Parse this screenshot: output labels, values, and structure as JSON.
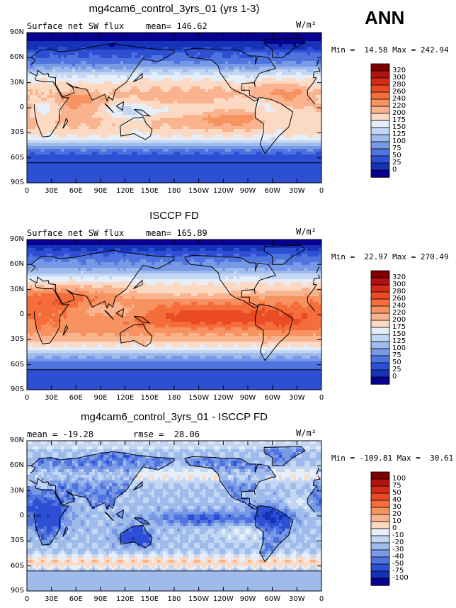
{
  "season": "ANN",
  "units_label": "W/m²",
  "lat_ticks": [
    "90N",
    "60N",
    "30N",
    "0",
    "30S",
    "60S",
    "90S"
  ],
  "lon_ticks": [
    "0",
    "30E",
    "60E",
    "90E",
    "120E",
    "150E",
    "180",
    "150W",
    "120W",
    "90W",
    "60W",
    "30W",
    "0"
  ],
  "panels": [
    {
      "title": "mg4cam6_control_3yrs_01 (yrs 1-3)",
      "left_label": "Surface net SW flux",
      "stat_label": "mean= 146.62",
      "minmax": "Min =  14.58 Max = 242.94",
      "colorbar": {
        "labels": [
          "320",
          "300",
          "280",
          "260",
          "240",
          "220",
          "200",
          "175",
          "150",
          "125",
          "100",
          "75",
          "50",
          "25",
          "0"
        ],
        "colors": [
          "#7f0000",
          "#b31212",
          "#d42c14",
          "#ea4b25",
          "#f46d3b",
          "#f79261",
          "#f9b48f",
          "#fcd9c2",
          "#e6eefa",
          "#c3d6f2",
          "#9ebbec",
          "#7799e6",
          "#4f74e0",
          "#2c4fd4",
          "#1633b8",
          "#08008f"
        ]
      }
    },
    {
      "title": "ISCCP FD",
      "left_label": "Surface net SW flux",
      "stat_label": "mean= 165.89",
      "minmax": "Min =  22.97 Max = 270.49",
      "colorbar": {
        "labels": [
          "320",
          "300",
          "280",
          "260",
          "240",
          "220",
          "200",
          "175",
          "150",
          "125",
          "100",
          "75",
          "50",
          "25",
          "0"
        ],
        "colors": [
          "#7f0000",
          "#b31212",
          "#d42c14",
          "#ea4b25",
          "#f46d3b",
          "#f79261",
          "#f9b48f",
          "#fcd9c2",
          "#e6eefa",
          "#c3d6f2",
          "#9ebbec",
          "#7799e6",
          "#4f74e0",
          "#2c4fd4",
          "#1633b8",
          "#08008f"
        ]
      }
    },
    {
      "title": "mg4cam6_control_3yrs_01 - ISCCP FD",
      "left_label": "mean = -19.28",
      "stat_label": "rmse =  28.06",
      "minmax": "Min = -109.81 Max =  30.61",
      "colorbar": {
        "labels": [
          "100",
          "75",
          "50",
          "40",
          "30",
          "20",
          "10",
          "0",
          "-10",
          "-20",
          "-30",
          "-40",
          "-50",
          "-75",
          "-100"
        ],
        "colors": [
          "#7f0000",
          "#b31212",
          "#d42c14",
          "#ea4b25",
          "#f46d3b",
          "#f79261",
          "#f9b48f",
          "#fcd9c2",
          "#e6eefa",
          "#c3d6f2",
          "#9ebbec",
          "#7799e6",
          "#4f74e0",
          "#2c4fd4",
          "#1633b8",
          "#08008f"
        ]
      }
    }
  ],
  "chart_data": [
    {
      "type": "heatmap",
      "title": "mg4cam6_control_3yrs_01 (yrs 1-3)",
      "subtitle": "Surface net SW flux",
      "mean": 146.62,
      "min": 14.58,
      "max": 242.94,
      "units": "W/m²",
      "x_range": [
        0,
        360
      ],
      "y_range": [
        -90,
        90
      ],
      "contour_levels": [
        0,
        25,
        50,
        75,
        100,
        125,
        150,
        175,
        200,
        220,
        240,
        260,
        280,
        300,
        320
      ]
    },
    {
      "type": "heatmap",
      "title": "ISCCP FD",
      "subtitle": "Surface net SW flux",
      "mean": 165.89,
      "min": 22.97,
      "max": 270.49,
      "units": "W/m²",
      "x_range": [
        0,
        360
      ],
      "y_range": [
        -90,
        90
      ],
      "contour_levels": [
        0,
        25,
        50,
        75,
        100,
        125,
        150,
        175,
        200,
        220,
        240,
        260,
        280,
        300,
        320
      ]
    },
    {
      "type": "heatmap",
      "title": "mg4cam6_control_3yrs_01 - ISCCP FD",
      "mean": -19.28,
      "rmse": 28.06,
      "min": -109.81,
      "max": 30.61,
      "units": "W/m²",
      "x_range": [
        0,
        360
      ],
      "y_range": [
        -90,
        90
      ],
      "contour_levels": [
        -100,
        -75,
        -50,
        -40,
        -30,
        -20,
        -10,
        0,
        10,
        20,
        30,
        40,
        50,
        75,
        100
      ]
    }
  ]
}
